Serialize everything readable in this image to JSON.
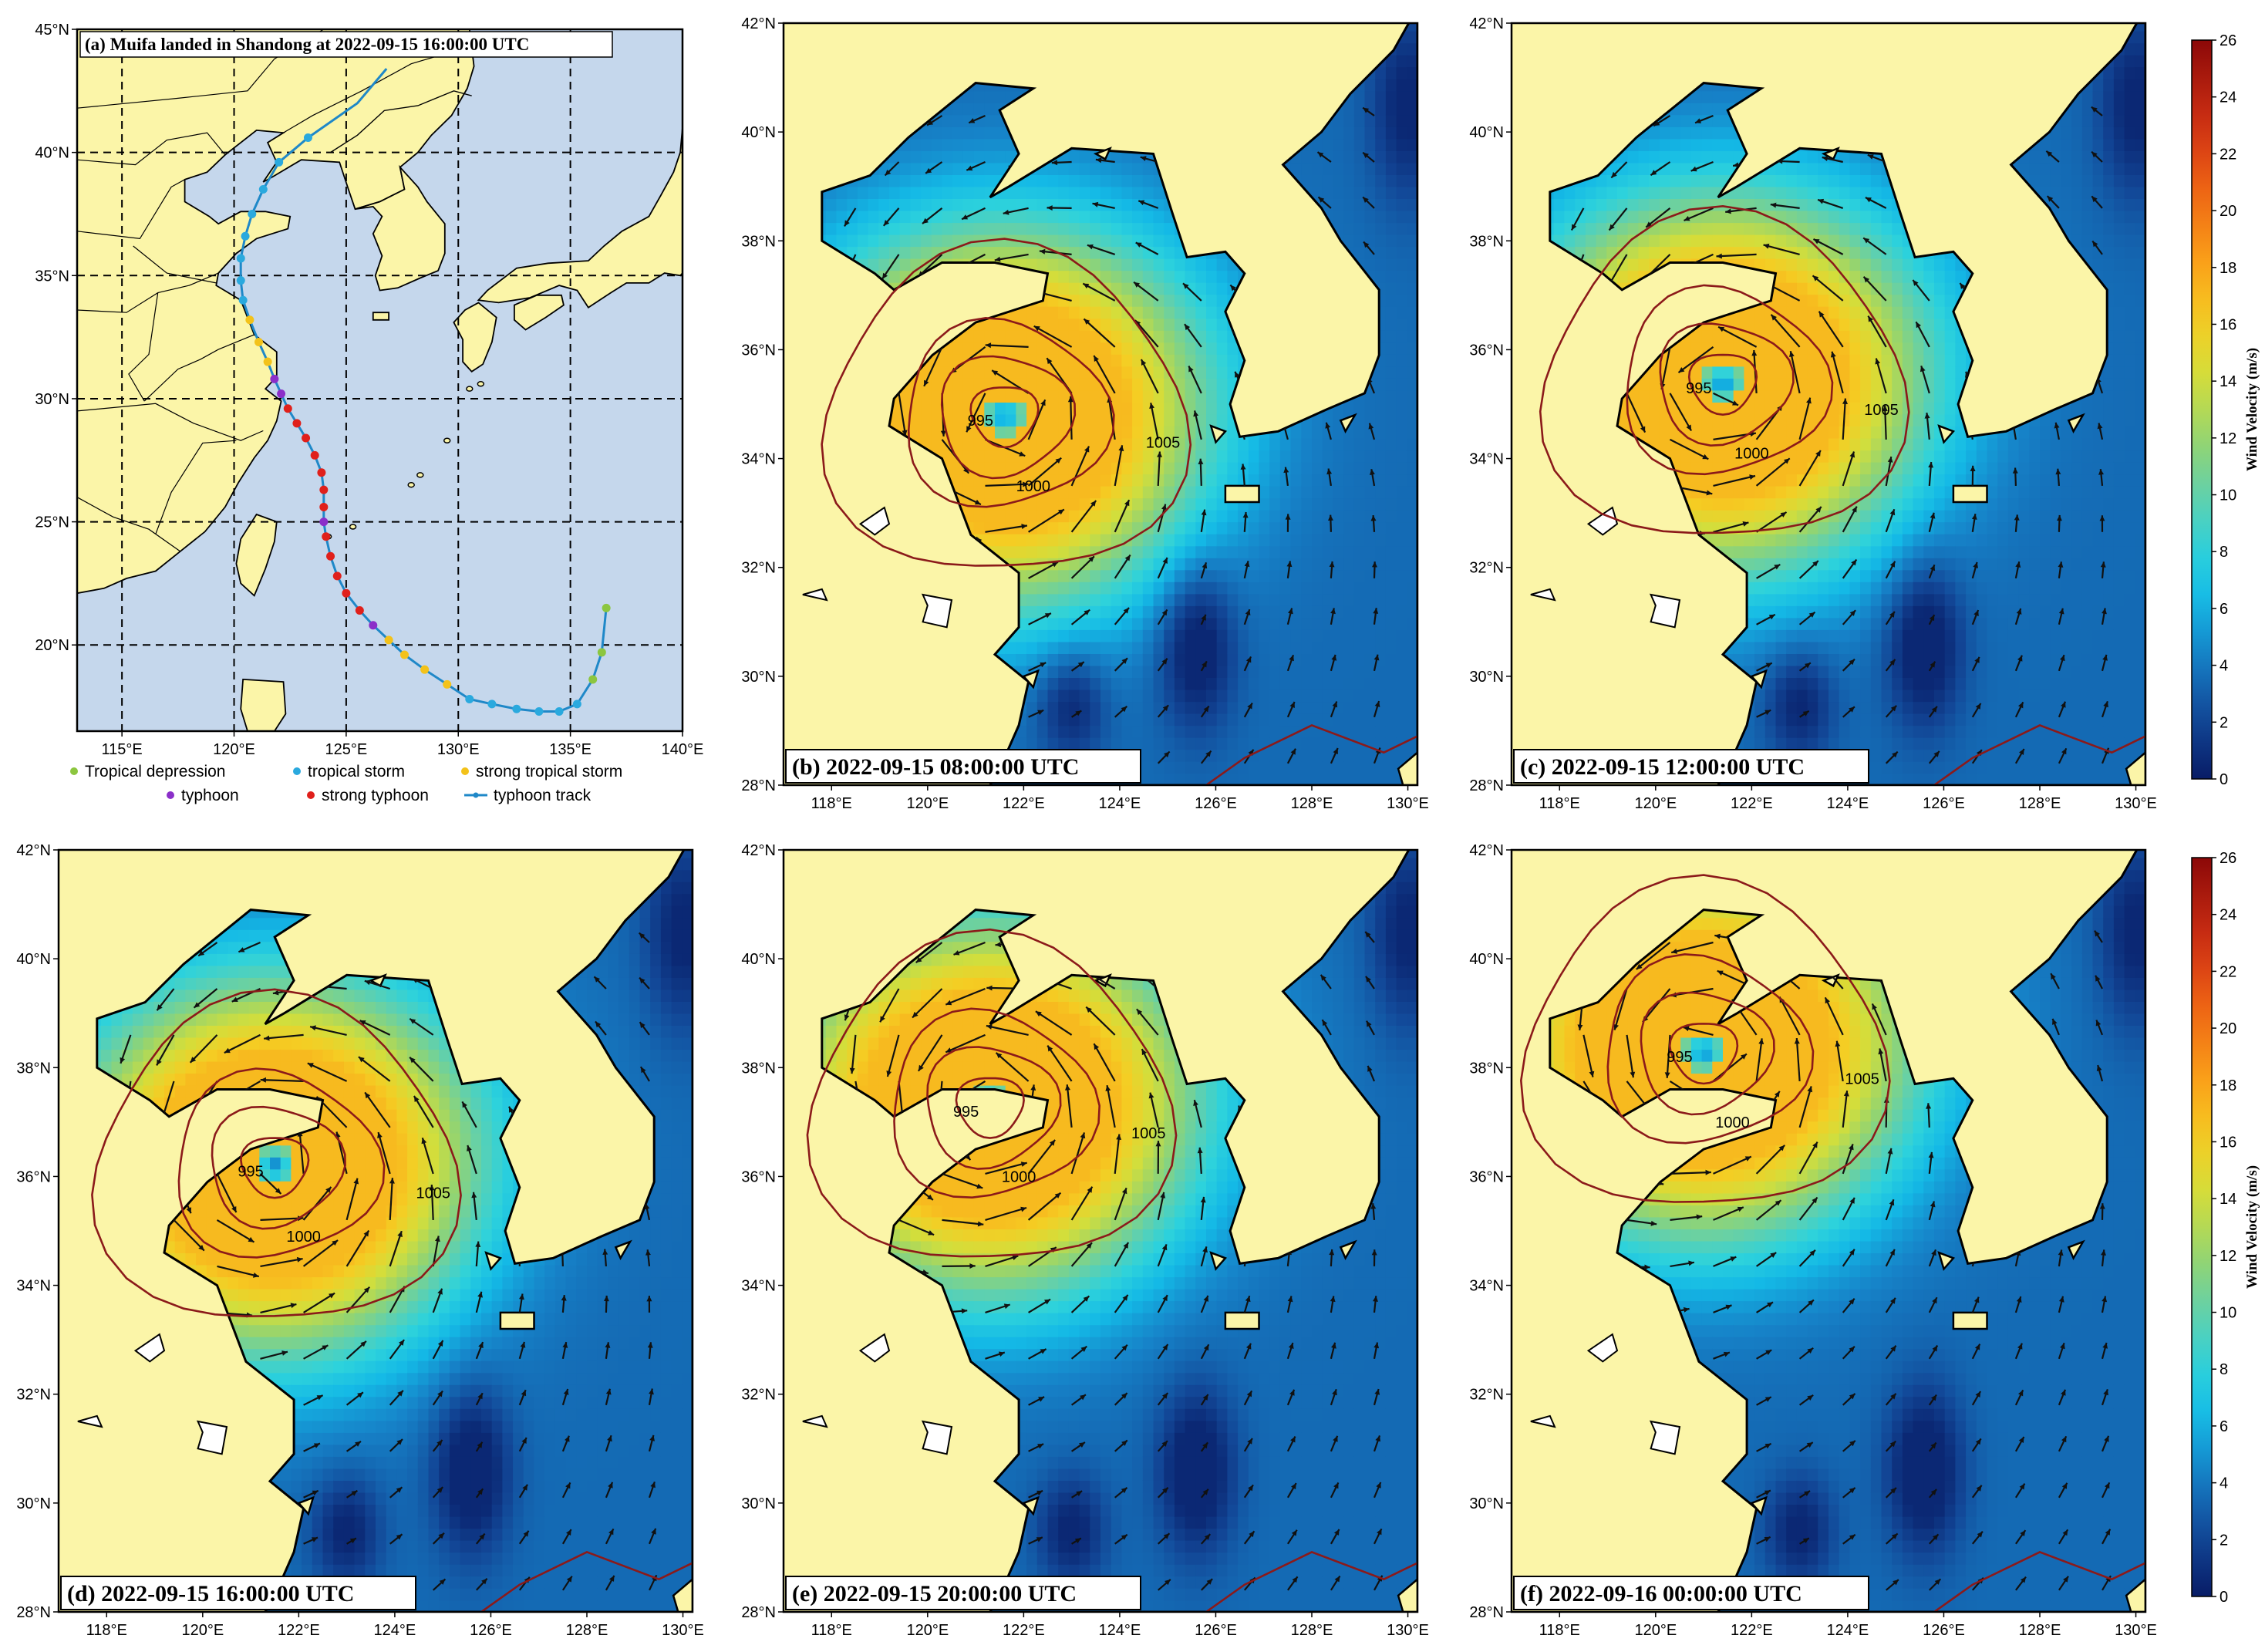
{
  "colors": {
    "land": "#fbf5a8",
    "sea_track_panel": "#c5d7ec",
    "tropical_depression": "#8cc63f",
    "tropical_storm": "#2aa9de",
    "strong_tropical_storm": "#f3c21a",
    "typhoon": "#8b2fc9",
    "strong_typhoon": "#e0201b",
    "typhoon_track": "#1f88c8",
    "isobar": "#8b1a1a",
    "arrow": "#111111"
  },
  "panel_a": {
    "title": "(a) Muifa landed in Shandong at 2022-09-15 16:00:00 UTC",
    "lon_ticks": [
      "115°E",
      "120°E",
      "125°E",
      "130°E",
      "135°E",
      "140°E"
    ],
    "lat_ticks": [
      "20°N",
      "25°N",
      "30°N",
      "35°N",
      "40°N",
      "45°N"
    ],
    "legend": {
      "tropical_depression": "Tropical depression",
      "tropical_storm": "tropical storm",
      "strong_tropical_storm": "strong tropical storm",
      "typhoon": "typhoon",
      "strong_typhoon": "strong typhoon",
      "typhoon_track": "typhoon track"
    }
  },
  "wind_panels": {
    "lon_ticks": [
      "118°E",
      "120°E",
      "122°E",
      "124°E",
      "126°E",
      "128°E",
      "130°E"
    ],
    "lat_ticks": [
      "28°N",
      "30°N",
      "32°N",
      "34°N",
      "36°N",
      "38°N",
      "40°N",
      "42°N"
    ],
    "panels": [
      {
        "id": "b",
        "label": "(b) 2022-09-15 08:00:00 UTC",
        "center": [
          121.6,
          34.8
        ]
      },
      {
        "id": "c",
        "label": "(c) 2022-09-15 12:00:00 UTC",
        "center": [
          121.4,
          35.4
        ]
      },
      {
        "id": "d",
        "label": "(d) 2022-09-15 16:00:00 UTC",
        "center": [
          121.5,
          36.2
        ]
      },
      {
        "id": "e",
        "label": "(e) 2022-09-15 20:00:00 UTC",
        "center": [
          121.3,
          37.3
        ]
      },
      {
        "id": "f",
        "label": "(f) 2022-09-16 00:00:00 UTC",
        "center": [
          121.0,
          38.3
        ]
      }
    ]
  },
  "isobar_labels": [
    "995",
    "1000",
    "1005"
  ],
  "colorbar": {
    "label": "Wind Velocity (m/s)",
    "ticks": [
      "0",
      "2",
      "4",
      "6",
      "8",
      "10",
      "12",
      "14",
      "16",
      "18",
      "20",
      "22",
      "24",
      "26"
    ]
  },
  "chart_data": {
    "type": "map",
    "track": [
      {
        "lon": 136.6,
        "lat": 21.5,
        "cat": "tropical_depression"
      },
      {
        "lon": 136.4,
        "lat": 19.7,
        "cat": "tropical_depression"
      },
      {
        "lon": 136.0,
        "lat": 18.6,
        "cat": "tropical_depression"
      },
      {
        "lon": 135.3,
        "lat": 17.6,
        "cat": "tropical_storm"
      },
      {
        "lon": 134.5,
        "lat": 17.3,
        "cat": "tropical_storm"
      },
      {
        "lon": 133.6,
        "lat": 17.3,
        "cat": "tropical_storm"
      },
      {
        "lon": 132.6,
        "lat": 17.4,
        "cat": "tropical_storm"
      },
      {
        "lon": 131.5,
        "lat": 17.6,
        "cat": "tropical_storm"
      },
      {
        "lon": 130.5,
        "lat": 17.8,
        "cat": "tropical_storm"
      },
      {
        "lon": 129.5,
        "lat": 18.4,
        "cat": "strong_tropical_storm"
      },
      {
        "lon": 128.5,
        "lat": 19.0,
        "cat": "strong_tropical_storm"
      },
      {
        "lon": 127.6,
        "lat": 19.6,
        "cat": "strong_tropical_storm"
      },
      {
        "lon": 126.9,
        "lat": 20.2,
        "cat": "strong_tropical_storm"
      },
      {
        "lon": 126.2,
        "lat": 20.8,
        "cat": "typhoon"
      },
      {
        "lon": 125.6,
        "lat": 21.4,
        "cat": "strong_typhoon"
      },
      {
        "lon": 125.0,
        "lat": 22.1,
        "cat": "strong_typhoon"
      },
      {
        "lon": 124.6,
        "lat": 22.8,
        "cat": "strong_typhoon"
      },
      {
        "lon": 124.3,
        "lat": 23.6,
        "cat": "strong_typhoon"
      },
      {
        "lon": 124.1,
        "lat": 24.4,
        "cat": "strong_typhoon"
      },
      {
        "lon": 124.0,
        "lat": 25.0,
        "cat": "typhoon"
      },
      {
        "lon": 124.0,
        "lat": 25.6,
        "cat": "strong_typhoon"
      },
      {
        "lon": 124.0,
        "lat": 26.3,
        "cat": "strong_typhoon"
      },
      {
        "lon": 123.9,
        "lat": 27.0,
        "cat": "strong_typhoon"
      },
      {
        "lon": 123.6,
        "lat": 27.7,
        "cat": "strong_typhoon"
      },
      {
        "lon": 123.2,
        "lat": 28.4,
        "cat": "strong_typhoon"
      },
      {
        "lon": 122.8,
        "lat": 29.0,
        "cat": "strong_typhoon"
      },
      {
        "lon": 122.4,
        "lat": 29.6,
        "cat": "strong_typhoon"
      },
      {
        "lon": 122.1,
        "lat": 30.2,
        "cat": "typhoon"
      },
      {
        "lon": 121.8,
        "lat": 30.8,
        "cat": "typhoon"
      },
      {
        "lon": 121.5,
        "lat": 31.5,
        "cat": "strong_tropical_storm"
      },
      {
        "lon": 121.1,
        "lat": 32.3,
        "cat": "strong_tropical_storm"
      },
      {
        "lon": 120.7,
        "lat": 33.2,
        "cat": "strong_tropical_storm"
      },
      {
        "lon": 120.4,
        "lat": 34.0,
        "cat": "tropical_storm"
      },
      {
        "lon": 120.3,
        "lat": 34.8,
        "cat": "tropical_storm"
      },
      {
        "lon": 120.3,
        "lat": 35.7,
        "cat": "tropical_storm"
      },
      {
        "lon": 120.5,
        "lat": 36.6,
        "cat": "tropical_storm"
      },
      {
        "lon": 120.8,
        "lat": 37.5,
        "cat": "tropical_storm"
      },
      {
        "lon": 121.3,
        "lat": 38.5,
        "cat": "tropical_storm"
      },
      {
        "lon": 122.0,
        "lat": 39.6,
        "cat": "tropical_storm"
      },
      {
        "lon": 123.3,
        "lat": 40.6,
        "cat": "tropical_storm"
      }
    ],
    "track_extension": [
      {
        "lon": 123.3,
        "lat": 40.6
      },
      {
        "lon": 125.5,
        "lat": 42.0
      },
      {
        "lon": 126.8,
        "lat": 43.4
      }
    ],
    "panel_a_extent": {
      "lon": [
        113,
        140
      ],
      "lat": [
        16.5,
        45
      ]
    },
    "wind_extent": {
      "lon": [
        117,
        130.2
      ],
      "lat": [
        28,
        42
      ]
    },
    "colorbar_range": [
      0,
      26
    ]
  }
}
